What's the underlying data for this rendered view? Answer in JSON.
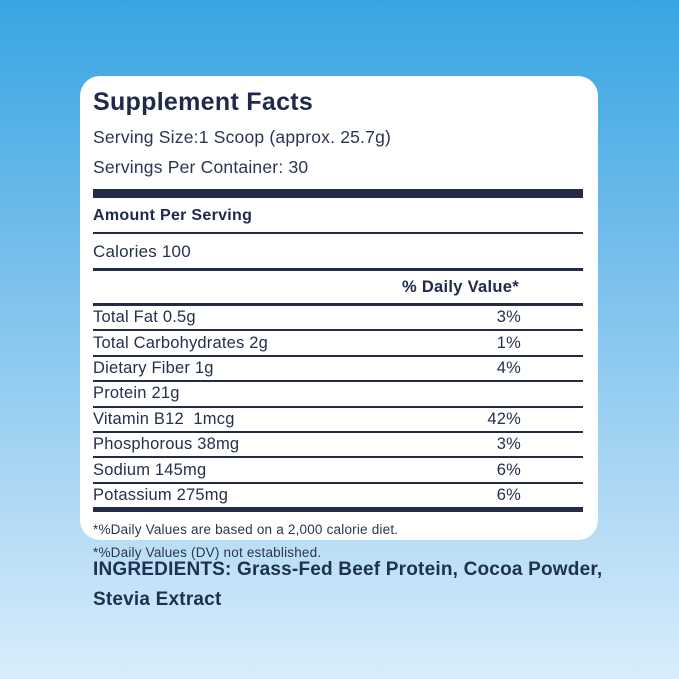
{
  "background": {
    "top_color": "#38a5e2",
    "bottom_color": "#d9edfb"
  },
  "colors": {
    "card": "#ffffff",
    "text_navy": "#232b48"
  },
  "label": {
    "title": "Supplement Facts",
    "serving_size": "Serving Size:1 Scoop (approx. 25.7g)",
    "servings_per_container": "Servings Per Container: 30",
    "amount_per_serving": "Amount Per Serving",
    "calories": "Calories 100",
    "daily_value_header": "% Daily Value*",
    "rows": [
      {
        "name": "Total Fat 0.5g",
        "dv": "3%"
      },
      {
        "name": "Total Carbohydrates 2g",
        "dv": "1%"
      },
      {
        "name": "Dietary Fiber 1g",
        "dv": "4%"
      },
      {
        "name": "Protein 21g",
        "dv": ""
      },
      {
        "name": "Vitamin B12  1mcg",
        "dv": "42%"
      },
      {
        "name": "Phosphorous 38mg",
        "dv": "3%"
      },
      {
        "name": "Sodium 145mg",
        "dv": "6%"
      },
      {
        "name": "Potassium 275mg",
        "dv": "6%"
      }
    ],
    "footnotes": [
      "*%Daily Values are based on a 2,000 calorie diet.",
      "*%Daily Values (DV) not established."
    ]
  },
  "ingredients": {
    "text": "INGREDIENTS: Grass-Fed Beef Protein, Cocoa Powder, Stevia Extract"
  }
}
